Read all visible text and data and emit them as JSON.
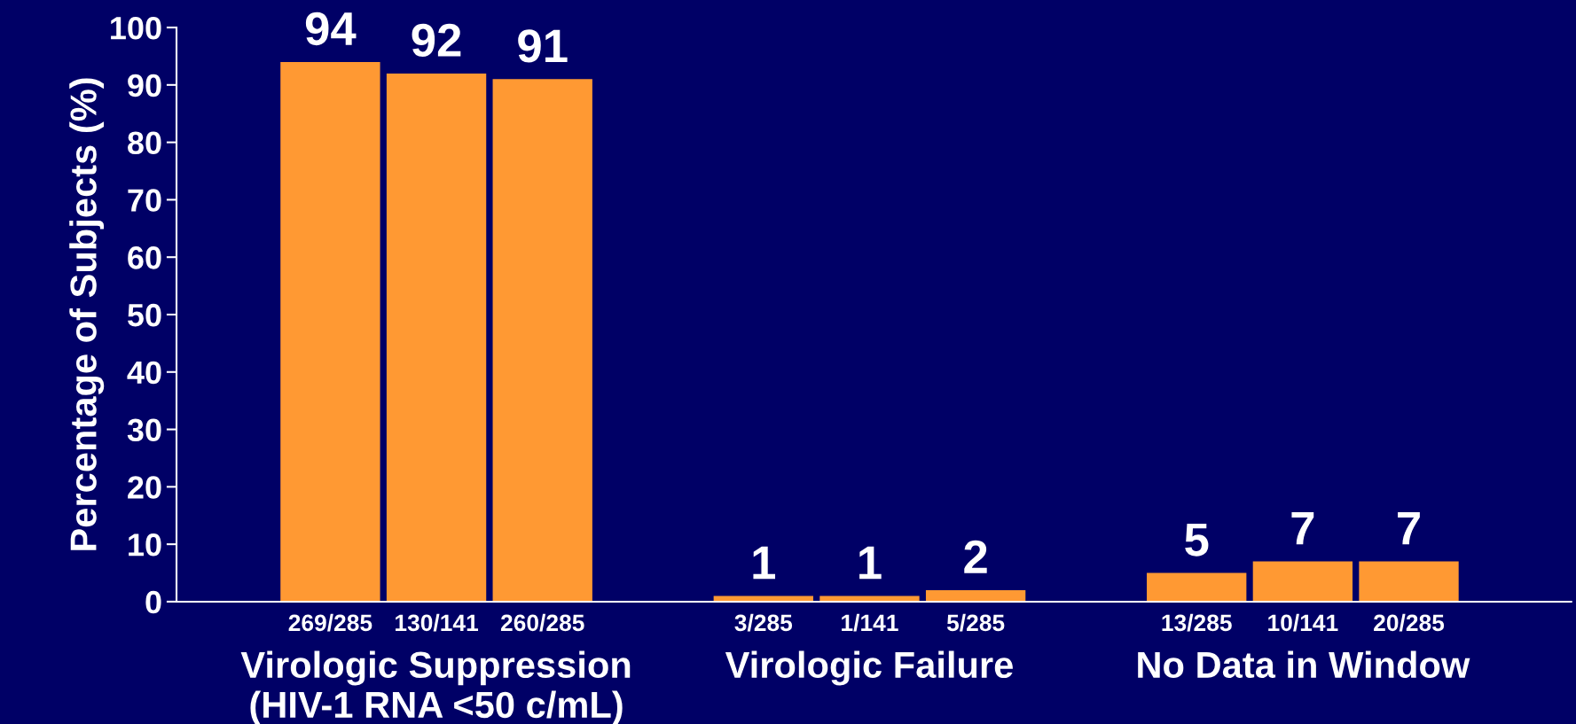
{
  "chart_data": {
    "type": "bar",
    "ylabel": "Percentage of Subjects (%)",
    "categories": [
      "Virologic Suppression\n(HIV-1 RNA <50 c/mL)",
      "Virologic Failure",
      "No Data in Window"
    ],
    "series": [
      {
        "color": "#ff9933",
        "values": [
          94,
          1,
          5
        ]
      },
      {
        "color": "#ff9933",
        "values": [
          92,
          1,
          7
        ]
      },
      {
        "color": "#ff9933",
        "values": [
          91,
          2,
          7
        ]
      }
    ],
    "data_labels": true,
    "annotations": [
      "269/285",
      "130/141",
      "260/285",
      "3/285",
      "1/141",
      "5/285",
      "13/285",
      "10/141",
      "20/285"
    ],
    "ylim": [
      0,
      100
    ],
    "yticks": [
      0,
      10,
      20,
      30,
      40,
      50,
      60,
      70,
      80,
      90,
      100
    ],
    "grid": false,
    "legend": false
  }
}
